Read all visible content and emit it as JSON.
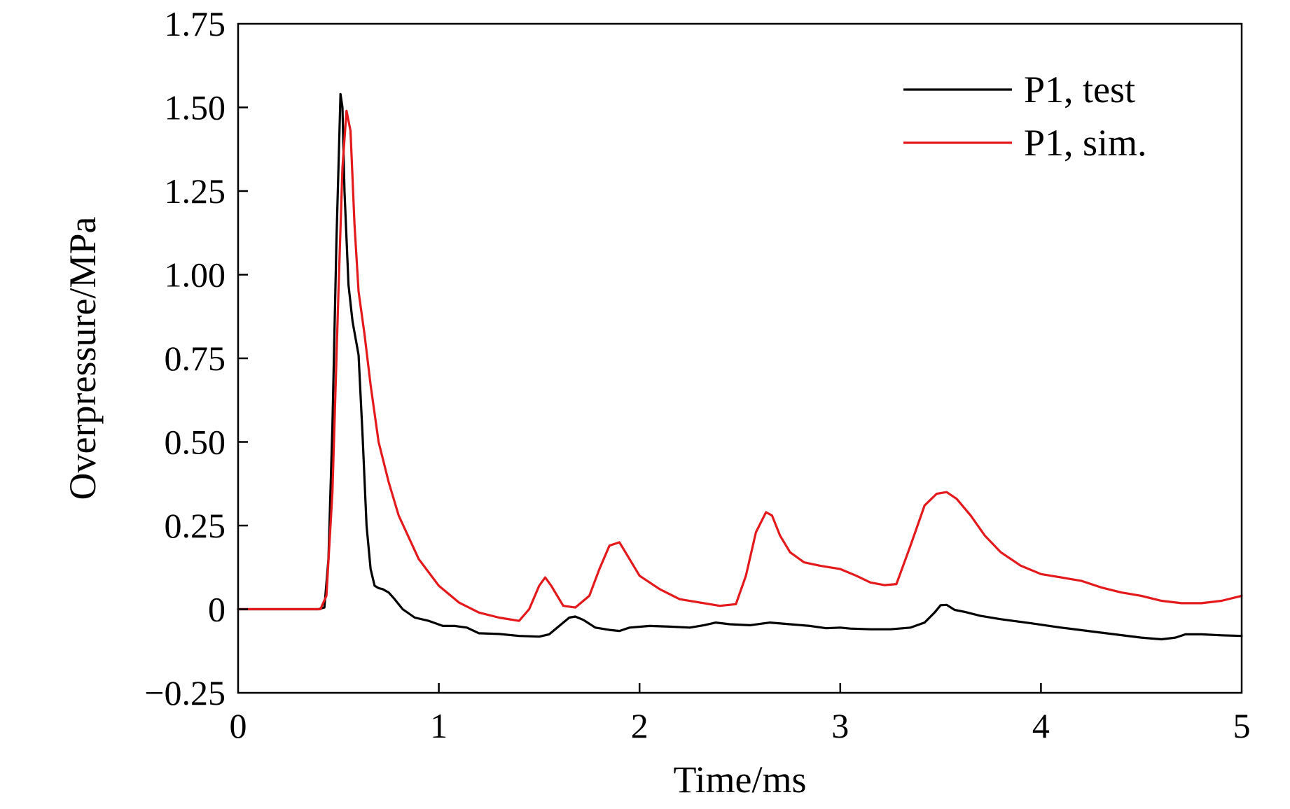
{
  "chart_data": {
    "type": "line",
    "title": "",
    "xlabel": "Time/ms",
    "ylabel": "Overpressure/MPa",
    "xlim": [
      0,
      5
    ],
    "ylim": [
      -0.25,
      1.75
    ],
    "xticks": [
      0,
      1,
      2,
      3,
      4,
      5
    ],
    "xtick_labels": [
      "0",
      "1",
      "2",
      "3",
      "4",
      "5"
    ],
    "yticks": [
      -0.25,
      0,
      0.25,
      0.5,
      0.75,
      1.0,
      1.25,
      1.5,
      1.75
    ],
    "ytick_labels": [
      "−0.25",
      "0",
      "0.25",
      "0.50",
      "0.75",
      "1.00",
      "1.25",
      "1.50",
      "1.75"
    ],
    "grid": false,
    "legend_position": "top-right",
    "series": [
      {
        "name": "P1, test",
        "color": "#000000",
        "x": [
          0,
          0.2,
          0.4,
          0.43,
          0.45,
          0.47,
          0.49,
          0.51,
          0.52,
          0.53,
          0.55,
          0.57,
          0.6,
          0.62,
          0.64,
          0.66,
          0.68,
          0.7,
          0.72,
          0.75,
          0.78,
          0.82,
          0.88,
          0.95,
          1.02,
          1.08,
          1.14,
          1.2,
          1.3,
          1.4,
          1.5,
          1.55,
          1.6,
          1.65,
          1.68,
          1.72,
          1.78,
          1.85,
          1.9,
          1.95,
          2.05,
          2.15,
          2.25,
          2.32,
          2.38,
          2.45,
          2.55,
          2.65,
          2.75,
          2.85,
          2.93,
          3.0,
          3.05,
          3.15,
          3.25,
          3.35,
          3.42,
          3.47,
          3.5,
          3.53,
          3.57,
          3.62,
          3.7,
          3.8,
          3.95,
          4.1,
          4.3,
          4.5,
          4.6,
          4.67,
          4.72,
          4.8,
          4.9,
          5.0
        ],
        "values": [
          0,
          0,
          0,
          0.005,
          0.15,
          0.55,
          1.1,
          1.54,
          1.5,
          1.25,
          0.97,
          0.86,
          0.76,
          0.52,
          0.25,
          0.12,
          0.07,
          0.063,
          0.06,
          0.05,
          0.03,
          0.0,
          -0.025,
          -0.035,
          -0.05,
          -0.05,
          -0.055,
          -0.072,
          -0.074,
          -0.08,
          -0.082,
          -0.075,
          -0.05,
          -0.025,
          -0.022,
          -0.032,
          -0.055,
          -0.062,
          -0.065,
          -0.055,
          -0.05,
          -0.052,
          -0.055,
          -0.048,
          -0.04,
          -0.045,
          -0.048,
          -0.04,
          -0.045,
          -0.05,
          -0.057,
          -0.055,
          -0.058,
          -0.06,
          -0.06,
          -0.055,
          -0.04,
          -0.01,
          0.012,
          0.013,
          -0.002,
          -0.008,
          -0.02,
          -0.03,
          -0.042,
          -0.055,
          -0.07,
          -0.085,
          -0.09,
          -0.085,
          -0.075,
          -0.075,
          -0.078,
          -0.08
        ]
      },
      {
        "name": "P1, sim.",
        "color": "#e3191c",
        "x": [
          0,
          0.2,
          0.41,
          0.44,
          0.47,
          0.5,
          0.52,
          0.54,
          0.56,
          0.58,
          0.6,
          0.63,
          0.66,
          0.7,
          0.75,
          0.8,
          0.9,
          1.0,
          1.1,
          1.2,
          1.3,
          1.4,
          1.45,
          1.5,
          1.53,
          1.56,
          1.62,
          1.68,
          1.75,
          1.8,
          1.85,
          1.9,
          1.95,
          2.0,
          2.1,
          2.2,
          2.3,
          2.4,
          2.48,
          2.53,
          2.58,
          2.63,
          2.66,
          2.7,
          2.75,
          2.82,
          2.9,
          3.0,
          3.08,
          3.15,
          3.22,
          3.28,
          3.35,
          3.42,
          3.48,
          3.53,
          3.58,
          3.65,
          3.72,
          3.8,
          3.9,
          4.0,
          4.1,
          4.2,
          4.3,
          4.4,
          4.5,
          4.6,
          4.7,
          4.8,
          4.9,
          5.0
        ],
        "values": [
          0,
          0,
          0,
          0.04,
          0.35,
          0.95,
          1.32,
          1.49,
          1.43,
          1.15,
          0.95,
          0.82,
          0.67,
          0.5,
          0.38,
          0.28,
          0.15,
          0.07,
          0.02,
          -0.01,
          -0.025,
          -0.035,
          0.0,
          0.07,
          0.095,
          0.07,
          0.01,
          0.005,
          0.04,
          0.12,
          0.19,
          0.2,
          0.15,
          0.1,
          0.06,
          0.03,
          0.02,
          0.01,
          0.015,
          0.1,
          0.23,
          0.29,
          0.28,
          0.22,
          0.17,
          0.14,
          0.13,
          0.12,
          0.1,
          0.08,
          0.072,
          0.075,
          0.19,
          0.31,
          0.345,
          0.35,
          0.33,
          0.28,
          0.22,
          0.17,
          0.13,
          0.105,
          0.095,
          0.085,
          0.065,
          0.05,
          0.04,
          0.025,
          0.018,
          0.018,
          0.025,
          0.04
        ]
      }
    ]
  }
}
